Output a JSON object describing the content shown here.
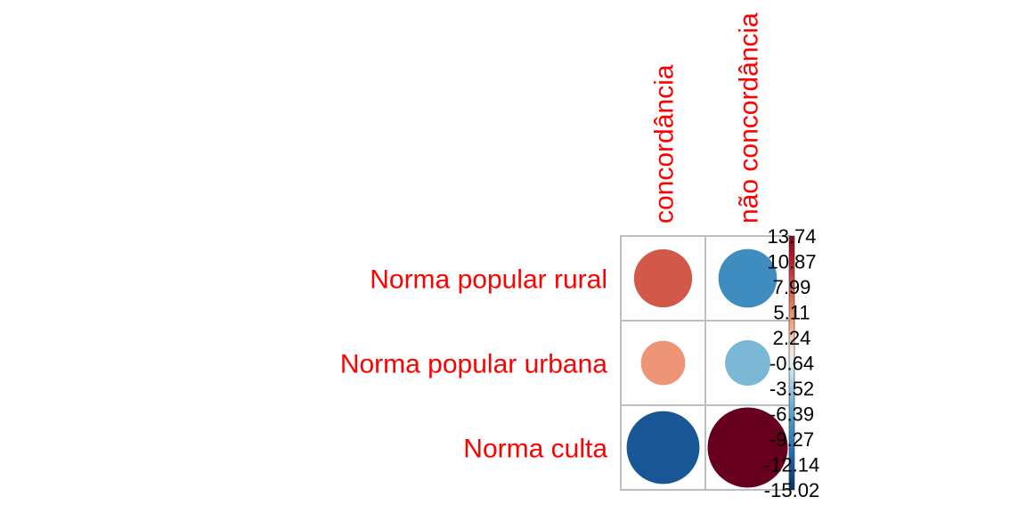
{
  "chart_data": {
    "type": "heatmap",
    "rows": [
      "Norma popular rural",
      "Norma popular urbana",
      "Norma culta"
    ],
    "columns": [
      "concordância",
      "não concordância"
    ],
    "values": [
      [
        7.9,
        -8.0
      ],
      [
        4.6,
        -4.8
      ],
      [
        -12.4,
        15.0
      ]
    ],
    "colorbar": {
      "ticks": [
        "13.74",
        "10.87",
        "7.99",
        "5.11",
        "2.24",
        "-0.64",
        "-3.52",
        "-6.39",
        "-9.27",
        "-12.14",
        "-15.02"
      ],
      "range": [
        -15.02,
        13.74
      ]
    },
    "label_color": "#ff0000",
    "grid_color": "#bebebe"
  }
}
